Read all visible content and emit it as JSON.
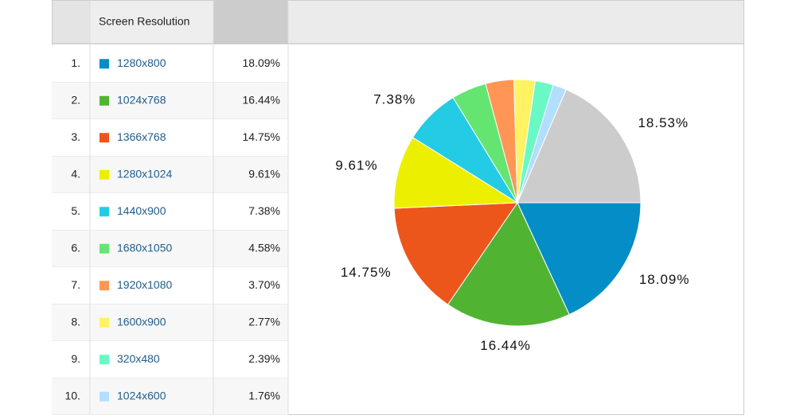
{
  "table": {
    "header": "Screen Resolution",
    "rows": [
      {
        "rank": "1.",
        "share": "18.09%"
      },
      {
        "rank": "2.",
        "share": "16.44%"
      },
      {
        "rank": "3.",
        "share": "14.75%"
      },
      {
        "rank": "4.",
        "share": "9.61%"
      },
      {
        "rank": "5.",
        "share": "7.38%"
      },
      {
        "rank": "6.",
        "share": "4.58%"
      },
      {
        "rank": "7.",
        "share": "3.70%"
      },
      {
        "rank": "8.",
        "share": "2.77%"
      },
      {
        "rank": "9.",
        "share": "2.39%"
      },
      {
        "rank": "10.",
        "share": "1.76%"
      }
    ]
  },
  "chart_data": {
    "type": "pie",
    "categories": [
      "1280x800",
      "1024x768",
      "1366x768",
      "1280x1024",
      "1440x900",
      "1680x1050",
      "1920x1080",
      "1600x900",
      "320x480",
      "1024x600",
      null
    ],
    "values": [
      18.09,
      16.44,
      14.75,
      9.61,
      7.38,
      4.58,
      3.7,
      2.77,
      2.39,
      1.76,
      18.53
    ],
    "value_labels": [
      "18.09%",
      "16.44%",
      "14.75%",
      "9.61%",
      "7.38%",
      null,
      null,
      null,
      null,
      null,
      "18.53%"
    ],
    "colors": [
      "#058dc7",
      "#50b432",
      "#ed561b",
      "#edef00",
      "#24cbe5",
      "#64e572",
      "#ff9655",
      "#fff263",
      "#6af9c4",
      "#b2deff",
      "#cccccc"
    ]
  }
}
